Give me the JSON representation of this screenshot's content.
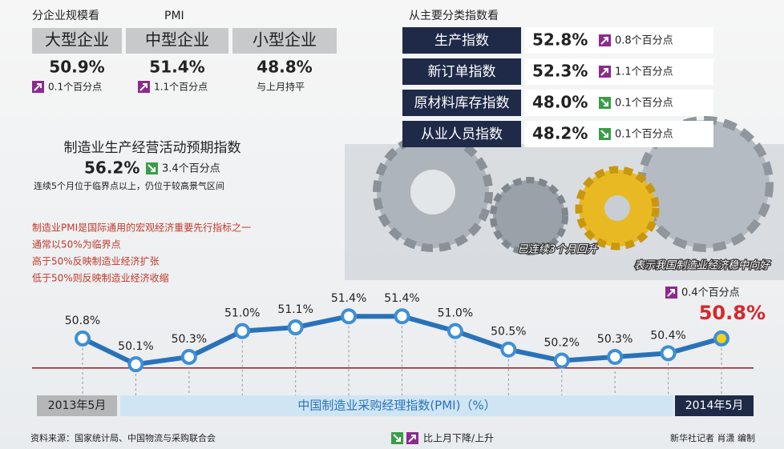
{
  "size_panel": {
    "heading": "分企业规模看",
    "subheading": "PMI",
    "items": [
      {
        "name": "大型企业",
        "value": "50.9%",
        "change": "0.1个百分点",
        "direction": "up"
      },
      {
        "name": "中型企业",
        "value": "51.4%",
        "change": "1.1个百分点",
        "direction": "up"
      },
      {
        "name": "小型企业",
        "value": "48.8%",
        "change": "与上月持平",
        "direction": "flat"
      }
    ]
  },
  "index_panel": {
    "heading": "从主要分类指数看",
    "items": [
      {
        "name": "生产指数",
        "value": "52.8%",
        "change": "0.8个百分点",
        "direction": "up"
      },
      {
        "name": "新订单指数",
        "value": "52.3%",
        "change": "1.1个百分点",
        "direction": "up"
      },
      {
        "name": "原材料库存指数",
        "value": "48.0%",
        "change": "0.1个百分点",
        "direction": "down"
      },
      {
        "name": "从业人员指数",
        "value": "48.2%",
        "change": "0.1个百分点",
        "direction": "down"
      }
    ]
  },
  "expectation": {
    "title": "制造业生产经营活动预期指数",
    "value": "56.2%",
    "change": "3.4个百分点",
    "direction": "down",
    "note": "连续5个月位于临界点以上，仍位于较高景气区间"
  },
  "notes": [
    "制造业PMI是国际通用的宏观经济重要先行指标之一",
    "通常以50%为临界点",
    "高于50%反映制造业经济扩张",
    "低于50%则反映制造业经济收缩"
  ],
  "gear_caption": [
    "已连续3个月回升",
    "表示我国制造业经济稳中向好"
  ],
  "latest_change": "0.4个百分点",
  "chart_data": {
    "type": "line",
    "title": "中国制造业采购经理指数(PMI)（%）",
    "categories": [
      "2013年5月",
      null,
      null,
      null,
      null,
      null,
      null,
      null,
      null,
      null,
      null,
      null,
      "2014年5月"
    ],
    "values": [
      50.8,
      50.1,
      50.3,
      51.0,
      51.1,
      51.4,
      51.4,
      51.0,
      50.5,
      50.2,
      50.3,
      50.4,
      50.8
    ],
    "value_labels": [
      "50.8%",
      "50.1%",
      "50.3%",
      "51.0%",
      "51.1%",
      "51.4%",
      "51.4%",
      "51.0%",
      "50.5%",
      "50.2%",
      "50.3%",
      "50.4%",
      "50.8%"
    ],
    "color": "#2a72b8",
    "ylim": [
      49.8,
      51.6
    ],
    "reference_line": 50
  },
  "footer": {
    "source": "资料来源：国家统计局、中国物流与采购联合会",
    "legend": "比上月下降/上升",
    "credit": "新华社记者 肖潇 编制"
  }
}
